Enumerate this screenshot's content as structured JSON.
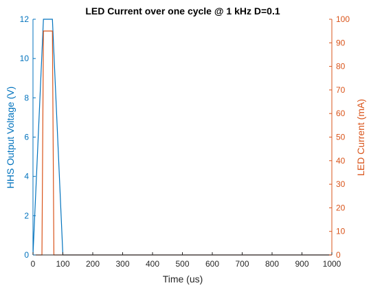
{
  "chart_data": {
    "type": "line",
    "title": "LED Current over one cycle @ 1 kHz D=0.1",
    "xlabel": "Time (us)",
    "ylabel_left": "HHS Output Voltage (V)",
    "ylabel_right": "LED Current (mA)",
    "xlim": [
      0,
      1000
    ],
    "ylim_left": [
      0,
      12
    ],
    "ylim_right": [
      0,
      100
    ],
    "x_ticks": [
      "0",
      "100",
      "200",
      "300",
      "400",
      "500",
      "600",
      "700",
      "800",
      "900",
      "1000"
    ],
    "y_left_ticks": [
      "0",
      "2",
      "4",
      "6",
      "8",
      "10",
      "12"
    ],
    "y_right_ticks": [
      "0",
      "10",
      "20",
      "30",
      "40",
      "50",
      "60",
      "70",
      "80",
      "90",
      "100"
    ],
    "grid": false,
    "series": [
      {
        "axis": "left",
        "color": "#0072BD",
        "x": [
          0,
          35,
          65,
          100,
          1000
        ],
        "y": [
          0,
          12,
          12,
          0,
          0
        ]
      },
      {
        "axis": "right",
        "color": "#D95319",
        "x": [
          0,
          30,
          35,
          65,
          70,
          1000
        ],
        "y": [
          0,
          0,
          95,
          95,
          0,
          0
        ]
      }
    ],
    "colors": {
      "left_axis": "#0072BD",
      "right_axis": "#D95319",
      "x_axis": "#262626"
    }
  }
}
